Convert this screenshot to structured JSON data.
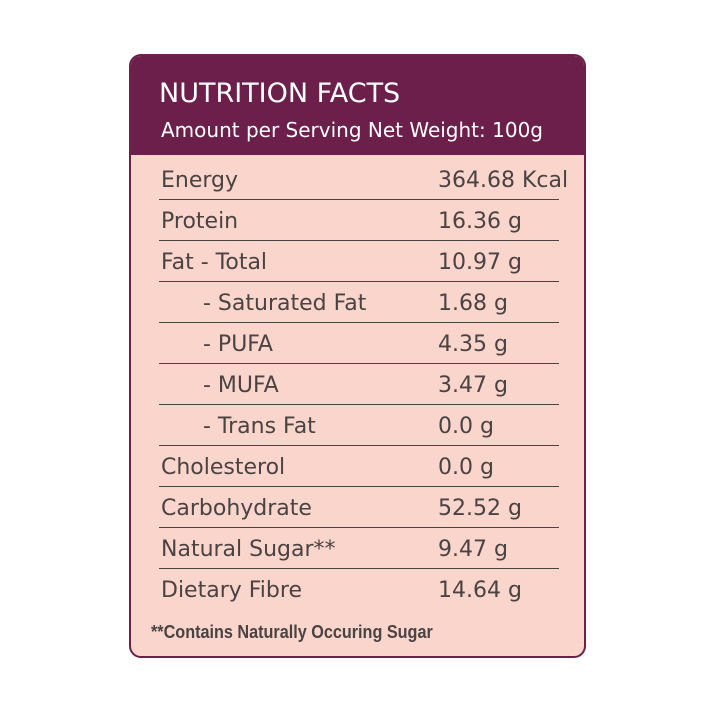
{
  "header": {
    "title": "NUTRITION FACTS",
    "subtitle": "Amount per Serving Net Weight: 100g"
  },
  "rows": [
    {
      "label": "Energy",
      "value": "364.68 Kcal"
    },
    {
      "label": "Protein",
      "value": "16.36 g"
    },
    {
      "label": "Fat - Total",
      "value": "10.97 g"
    },
    {
      "label": "- Saturated Fat",
      "value": "1.68 g"
    },
    {
      "label": "- PUFA",
      "value": "4.35 g"
    },
    {
      "label": "- MUFA",
      "value": "3.47 g"
    },
    {
      "label": "- Trans Fat",
      "value": "0.0 g"
    },
    {
      "label": "Cholesterol",
      "value": "0.0 g"
    },
    {
      "label": "Carbohydrate",
      "value": "52.52 g"
    },
    {
      "label": "Natural Sugar**",
      "value": "9.47 g"
    },
    {
      "label": "Dietary Fibre",
      "value": "14.64 g"
    }
  ],
  "footnote": "**Contains Naturally Occuring Sugar",
  "colors": {
    "header_bg": "#6b1f4a",
    "panel_bg": "#f9d5cb",
    "text": "#4a4343"
  }
}
